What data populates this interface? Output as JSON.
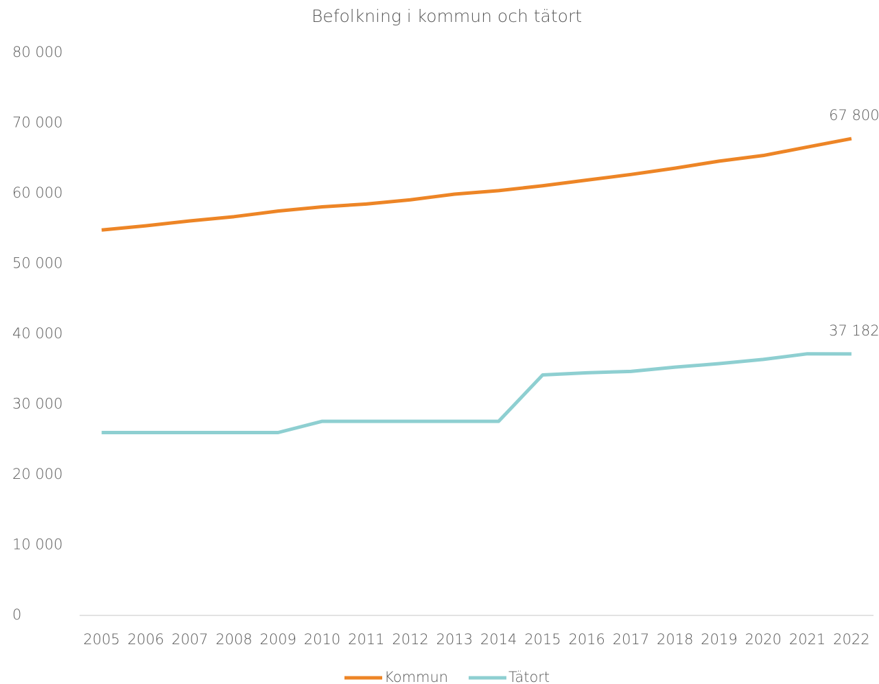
{
  "chart_data": {
    "type": "line",
    "title": "Befolkning i kommun och tätort",
    "categories": [
      "2005",
      "2006",
      "2007",
      "2008",
      "2009",
      "2010",
      "2011",
      "2012",
      "2013",
      "2014",
      "2015",
      "2016",
      "2017",
      "2018",
      "2019",
      "2020",
      "2021",
      "2022"
    ],
    "series": [
      {
        "name": "Kommun",
        "color": "#ed8526",
        "values": [
          54800,
          55400,
          56100,
          56700,
          57500,
          58100,
          58500,
          59100,
          59900,
          60400,
          61100,
          61900,
          62700,
          63600,
          64600,
          65400,
          66600,
          67800
        ],
        "value_labels": [
          null,
          null,
          null,
          null,
          null,
          null,
          null,
          null,
          null,
          null,
          null,
          null,
          null,
          null,
          null,
          null,
          null,
          "67 800"
        ]
      },
      {
        "name": "Tätort",
        "color": "#8ecfd1",
        "values": [
          26000,
          26000,
          26000,
          26000,
          26000,
          27600,
          27600,
          27600,
          27600,
          27600,
          34200,
          34500,
          34700,
          35300,
          35800,
          36400,
          37200,
          37182
        ],
        "value_labels": [
          null,
          null,
          null,
          null,
          null,
          null,
          null,
          null,
          null,
          null,
          null,
          null,
          null,
          null,
          null,
          null,
          null,
          "37 182"
        ]
      }
    ],
    "ylim": [
      0,
      80000
    ],
    "yticks": [
      0,
      {
        "value": 10000,
        "label": "10 000"
      },
      {
        "value": 20000,
        "label": "20 000"
      },
      {
        "value": 30000,
        "label": "30 000"
      },
      {
        "value": 40000,
        "label": "40 000"
      },
      {
        "value": 50000,
        "label": "50 000"
      },
      {
        "value": 60000,
        "label": "60 000"
      },
      {
        "value": 70000,
        "label": "70 000"
      },
      {
        "value": 80000,
        "label": "80 000"
      }
    ],
    "grid": false,
    "legend": "bottom"
  }
}
